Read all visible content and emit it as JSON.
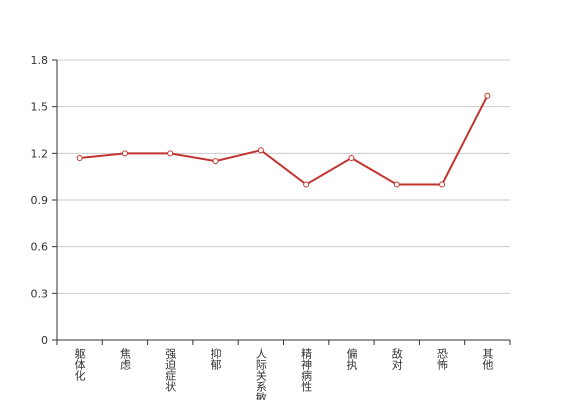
{
  "chart_data": {
    "type": "line",
    "categories": [
      "躯体化",
      "焦虑",
      "强迫症状",
      "抑郁",
      "人际关系敏感",
      "精神病性",
      "偏执",
      "敌对",
      "恐怖",
      "其他"
    ],
    "series": [
      {
        "name": null,
        "color": "#c23531",
        "values": [
          1.17,
          1.2,
          1.2,
          1.15,
          1.22,
          1.0,
          1.17,
          1.0,
          1.0,
          1.57
        ]
      }
    ],
    "ylim": [
      0,
      1.8
    ],
    "yticks": [
      0,
      0.3,
      0.6,
      0.9,
      1.2,
      1.5,
      1.8
    ],
    "grid": true
  }
}
